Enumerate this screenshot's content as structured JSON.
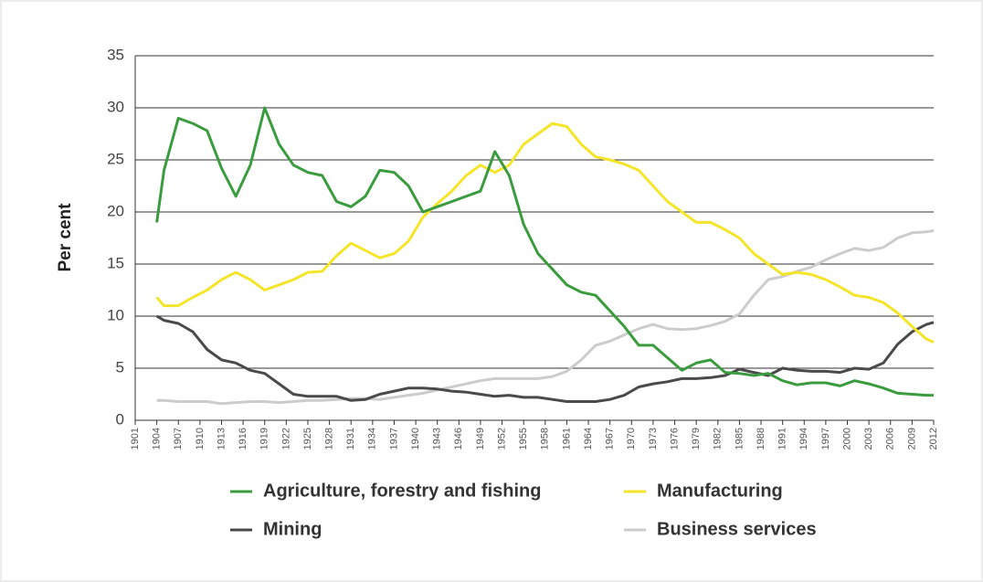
{
  "chart_data": {
    "type": "line",
    "ylabel": "Per cent",
    "x": [
      1904,
      1905,
      1907,
      1909,
      1911,
      1913,
      1915,
      1917,
      1919,
      1921,
      1923,
      1925,
      1927,
      1929,
      1931,
      1933,
      1935,
      1937,
      1939,
      1941,
      1943,
      1945,
      1947,
      1949,
      1951,
      1953,
      1955,
      1957,
      1959,
      1961,
      1963,
      1965,
      1967,
      1969,
      1971,
      1973,
      1975,
      1977,
      1979,
      1981,
      1983,
      1985,
      1987,
      1989,
      1991,
      1993,
      1995,
      1997,
      1999,
      2001,
      2003,
      2005,
      2007,
      2009,
      2011,
      2012
    ],
    "series": [
      {
        "name": "Agriculture, forestry and fishing",
        "color": "#3a9c3e",
        "values": [
          19,
          24,
          29,
          28.5,
          27.8,
          24.2,
          21.5,
          24.5,
          30,
          26.5,
          24.5,
          23.8,
          23.5,
          21,
          20.5,
          21.5,
          24,
          23.8,
          22.5,
          20,
          20.5,
          21,
          21.5,
          22,
          25.8,
          23.5,
          18.8,
          16,
          14.5,
          13,
          12.3,
          12,
          10.5,
          9,
          7.2,
          7.2,
          6,
          4.8,
          5.5,
          5.8,
          4.6,
          4.5,
          4.3,
          4.5,
          3.8,
          3.4,
          3.6,
          3.6,
          3.3,
          3.8,
          3.5,
          3.1,
          2.6,
          2.5,
          2.4,
          2.4
        ]
      },
      {
        "name": "Manufacturing",
        "color": "#f5e52a",
        "values": [
          11.8,
          11,
          11,
          11.8,
          12.5,
          13.5,
          14.2,
          13.5,
          12.5,
          13,
          13.5,
          14.2,
          14.3,
          15.8,
          17,
          16.3,
          15.6,
          16,
          17.2,
          19.5,
          20.8,
          22,
          23.5,
          24.5,
          23.8,
          24.5,
          26.5,
          27.5,
          28.5,
          28.2,
          26.5,
          25.3,
          25,
          24.6,
          24,
          22.5,
          21,
          20,
          19,
          19,
          18.3,
          17.5,
          16,
          15,
          14,
          14.2,
          14,
          13.5,
          12.8,
          12,
          11.8,
          11.3,
          10.3,
          9,
          7.8,
          7.5
        ]
      },
      {
        "name": "Mining",
        "color": "#4a4a4a",
        "values": [
          10,
          9.6,
          9.3,
          8.5,
          6.8,
          5.8,
          5.5,
          4.8,
          4.5,
          3.5,
          2.5,
          2.3,
          2.3,
          2.3,
          1.9,
          2,
          2.5,
          2.8,
          3.1,
          3.1,
          3,
          2.8,
          2.7,
          2.5,
          2.3,
          2.4,
          2.2,
          2.2,
          2,
          1.8,
          1.8,
          1.8,
          2,
          2.4,
          3.2,
          3.5,
          3.7,
          4,
          4,
          4.1,
          4.3,
          4.9,
          4.6,
          4.3,
          5,
          4.8,
          4.7,
          4.7,
          4.6,
          5,
          4.9,
          5.5,
          7.3,
          8.5,
          9.2,
          9.4
        ]
      },
      {
        "name": "Business services",
        "color": "#cccccc",
        "values": [
          1.9,
          1.9,
          1.8,
          1.8,
          1.8,
          1.6,
          1.7,
          1.8,
          1.8,
          1.7,
          1.8,
          1.9,
          1.9,
          2,
          2.1,
          2.1,
          2,
          2.2,
          2.4,
          2.6,
          2.9,
          3.2,
          3.5,
          3.8,
          4,
          4,
          4,
          4,
          4.2,
          4.7,
          5.8,
          7.2,
          7.6,
          8.2,
          8.8,
          9.2,
          8.8,
          8.7,
          8.8,
          9.1,
          9.5,
          10.2,
          12,
          13.5,
          13.8,
          14.3,
          14.7,
          15.4,
          16,
          16.5,
          16.3,
          16.6,
          17.5,
          18,
          18.1,
          18.2
        ]
      }
    ],
    "xlim": [
      1901,
      2012
    ],
    "xticks": [
      1901,
      1904,
      1907,
      1910,
      1913,
      1916,
      1919,
      1922,
      1925,
      1928,
      1931,
      1934,
      1937,
      1940,
      1943,
      1946,
      1949,
      1952,
      1955,
      1958,
      1961,
      1964,
      1967,
      1970,
      1973,
      1976,
      1979,
      1982,
      1985,
      1988,
      1991,
      1994,
      1997,
      2000,
      2003,
      2006,
      2009,
      2012
    ],
    "ylim": [
      0,
      35
    ],
    "yticks": [
      0,
      5,
      10,
      15,
      20,
      25,
      30,
      35
    ],
    "grid": true
  }
}
